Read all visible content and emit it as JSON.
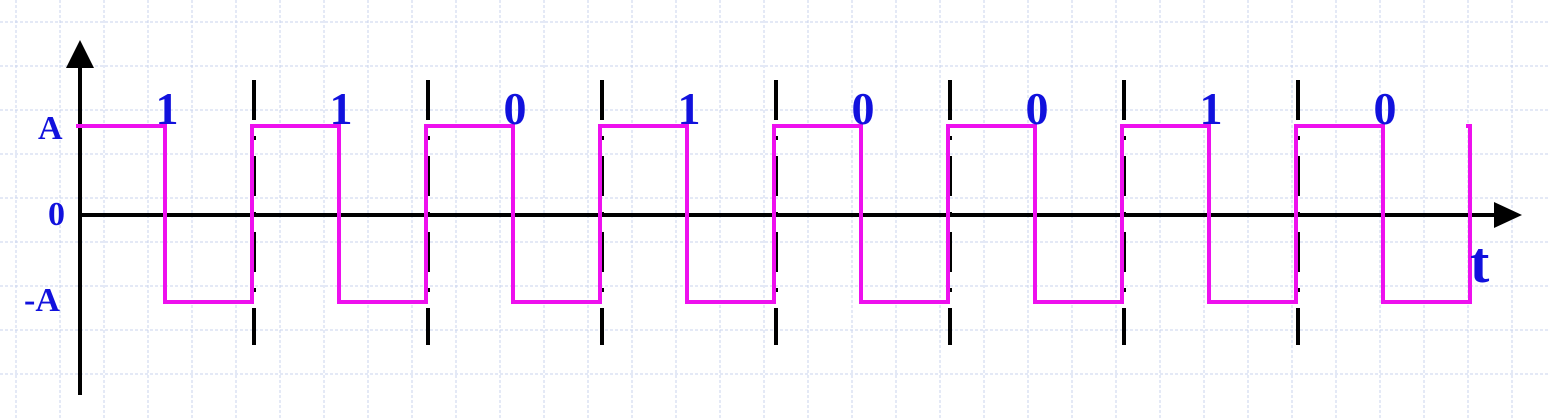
{
  "colors": {
    "background": "#ffffff",
    "grid": "#c9d3ee",
    "axis": "#000000",
    "signal": "#ee10ee",
    "label": "#1111dd"
  },
  "axes": {
    "y_labels": {
      "high": "A",
      "zero": "0",
      "low": "-A"
    },
    "x_label": "t"
  },
  "bits": [
    "1",
    "1",
    "0",
    "1",
    "0",
    "0",
    "1",
    "0"
  ],
  "signal_levels": [
    1,
    -1,
    1,
    -1,
    1,
    -1,
    1,
    -1,
    1,
    -1,
    1,
    -1,
    1,
    -1,
    1,
    -1,
    1
  ]
}
